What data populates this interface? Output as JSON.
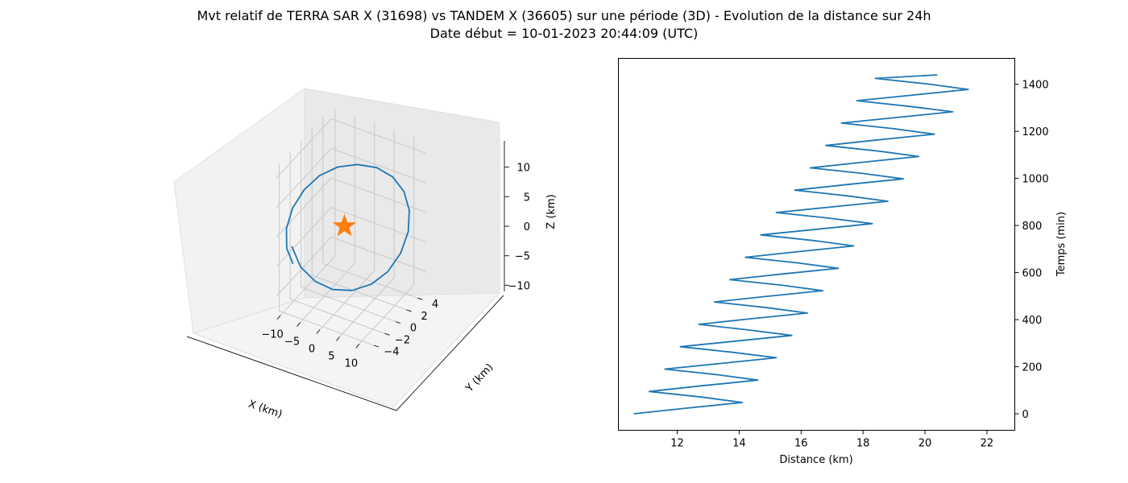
{
  "figure": {
    "title_line1": "Mvt relatif de TERRA SAR X (31698) vs TANDEM X (36605) sur une période (3D) - Evolution de la distance sur 24h",
    "title_line2": "Date début = 10-01-2023 20:44:09 (UTC)"
  },
  "chart_data": [
    {
      "type": "line3d",
      "xlabel": "X (km)",
      "ylabel": "Y (km)",
      "zlabel": "Z (km)",
      "xlim": [
        -11,
        13
      ],
      "ylim": [
        -4.5,
        5.5
      ],
      "zlim": [
        -13,
        12
      ],
      "xticks": [
        "−10",
        "−5",
        "0",
        "5",
        "10"
      ],
      "yticks": [
        "−4",
        "−2",
        "0",
        "2",
        "4"
      ],
      "zticks": [
        "−10",
        "−5",
        "0",
        "5",
        "10"
      ],
      "grid": true,
      "series": [
        {
          "kind": "orbit",
          "color": "#1f77b4",
          "points": [
            [
              -10.3,
              -2.2,
              -3.7
            ],
            [
              -8.6,
              -1.8,
              -7.2
            ],
            [
              -6.0,
              -1.0,
              -9.8
            ],
            [
              -2.8,
              -0.1,
              -11.3
            ],
            [
              0.7,
              0.9,
              -11.6
            ],
            [
              4.2,
              1.9,
              -10.7
            ],
            [
              7.3,
              2.7,
              -8.6
            ],
            [
              9.7,
              3.3,
              -5.5
            ],
            [
              11.2,
              3.6,
              -1.8
            ],
            [
              11.6,
              3.5,
              2.0
            ],
            [
              10.8,
              3.1,
              5.4
            ],
            [
              8.9,
              2.4,
              8.1
            ],
            [
              6.1,
              1.5,
              9.9
            ],
            [
              2.7,
              0.4,
              10.7
            ],
            [
              -0.9,
              -0.6,
              10.4
            ],
            [
              -4.3,
              -1.5,
              9.0
            ],
            [
              -7.2,
              -2.2,
              6.6
            ],
            [
              -9.4,
              -2.7,
              3.5
            ],
            [
              -10.7,
              -2.9,
              -0.1
            ],
            [
              -10.9,
              -2.7,
              -3.7
            ],
            [
              -10.0,
              -2.2,
              -6.6
            ]
          ]
        },
        {
          "kind": "star-marker",
          "color": "#ff7f0e",
          "points": [
            [
              0,
              0,
              0
            ]
          ]
        }
      ]
    },
    {
      "type": "line",
      "xlabel": "Distance (km)",
      "ylabel": "Temps (min)",
      "xlim": [
        10.1,
        22.9
      ],
      "ylim": [
        -70,
        1510
      ],
      "xticks": [
        12,
        14,
        16,
        18,
        20,
        22
      ],
      "yticks": [
        0,
        200,
        400,
        600,
        800,
        1000,
        1200,
        1400
      ],
      "grid": false,
      "ylabel_side": "right",
      "color": "#1f77b4",
      "model": "distance = 12.3 + 0.0056 * t + 1.5 * sin(2 * pi * t / 95 - pi/2)",
      "series": [
        {
          "t": [
            0,
            24,
            48,
            71,
            95,
            119,
            143,
            166,
            190,
            214,
            238,
            261,
            285,
            309,
            333,
            356,
            380,
            404,
            428,
            451,
            475,
            499,
            523,
            546,
            570,
            594,
            618,
            641,
            665,
            689,
            713,
            736,
            760,
            784,
            808,
            831,
            855,
            879,
            903,
            926,
            950,
            974,
            998,
            1021,
            1045,
            1069,
            1093,
            1116,
            1140,
            1164,
            1188,
            1211,
            1235,
            1259,
            1283,
            1306,
            1330,
            1354,
            1378,
            1401,
            1425,
            1440
          ],
          "distance": [
            10.6,
            12.3,
            14.1,
            12.8,
            11.1,
            12.8,
            14.6,
            13.3,
            11.6,
            13.4,
            15.2,
            13.8,
            12.1,
            13.9,
            15.7,
            14.3,
            12.7,
            14.4,
            16.2,
            14.9,
            13.2,
            14.9,
            16.7,
            15.4,
            13.7,
            15.4,
            17.2,
            15.9,
            14.2,
            15.9,
            17.7,
            16.4,
            14.7,
            16.5,
            18.3,
            16.9,
            15.2,
            17.0,
            18.8,
            17.5,
            15.8,
            17.5,
            19.3,
            18.0,
            16.3,
            18.0,
            19.8,
            18.5,
            16.8,
            18.5,
            20.3,
            19.0,
            17.3,
            19.1,
            20.9,
            19.5,
            17.8,
            19.6,
            21.4,
            20.1,
            18.4,
            20.4
          ]
        }
      ]
    }
  ]
}
